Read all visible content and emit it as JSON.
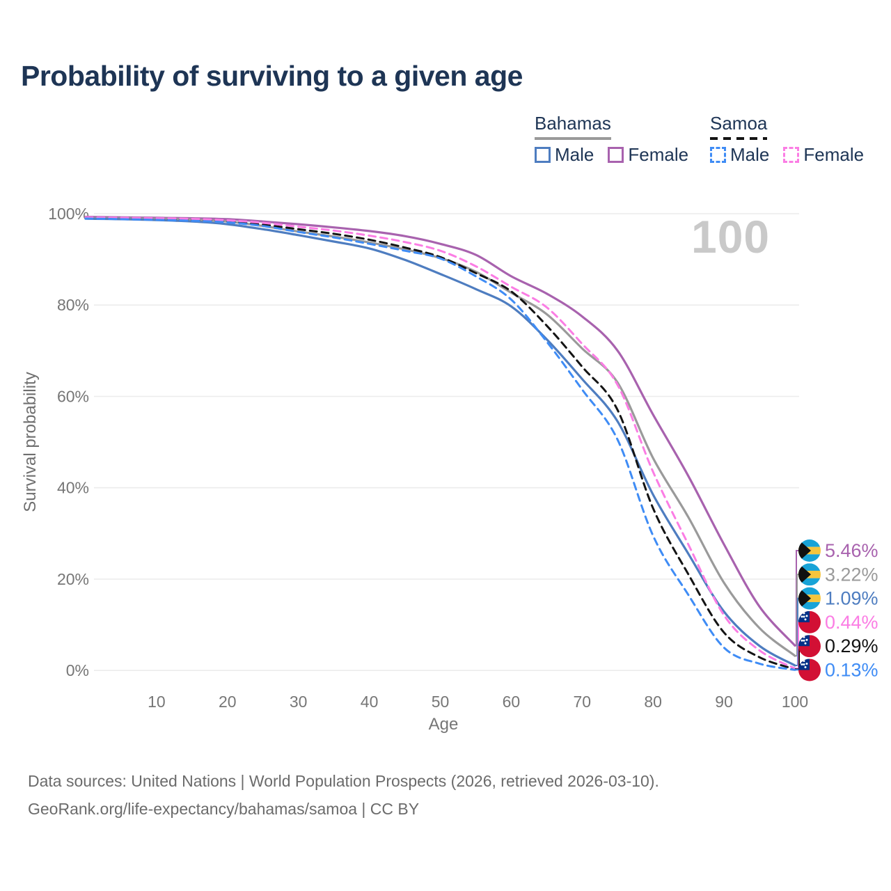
{
  "title": "Probability of surviving to a given age",
  "watermark": "100",
  "legend": {
    "groups": [
      {
        "label": "Bahamas",
        "underline_style": "solid",
        "underline_color": "#9a9a9a",
        "items": [
          {
            "label": "Male",
            "box_color": "#4e7dc0",
            "box_style": "solid"
          },
          {
            "label": "Female",
            "box_color": "#a862ae",
            "box_style": "solid"
          }
        ]
      },
      {
        "label": "Samoa",
        "underline_style": "dashed",
        "underline_color": "#141414",
        "items": [
          {
            "label": "Male",
            "box_color": "#3f8cf5",
            "box_style": "dashed"
          },
          {
            "label": "Female",
            "box_color": "#fb7de4",
            "box_style": "dashed"
          }
        ]
      }
    ]
  },
  "chart_data": {
    "type": "line",
    "title": "Probability of surviving to a given age",
    "xlabel": "Age",
    "ylabel": "Survival probability",
    "xlim": [
      0,
      100
    ],
    "ylim": [
      0,
      100
    ],
    "x_ticks": [
      10,
      20,
      30,
      40,
      50,
      60,
      70,
      80,
      90,
      100
    ],
    "y_ticks": [
      0,
      20,
      40,
      60,
      80,
      100
    ],
    "y_tick_suffix": "%",
    "grid": "horizontal-only",
    "x": [
      0,
      5,
      10,
      15,
      20,
      25,
      30,
      35,
      40,
      45,
      50,
      55,
      60,
      65,
      70,
      75,
      80,
      85,
      90,
      95,
      100
    ],
    "series": [
      {
        "key": "bahamas-female",
        "name": "Bahamas Female",
        "country": "Bahamas",
        "sex": "Female",
        "color": "#a862ae",
        "dash": "solid",
        "values": [
          99.3,
          99.2,
          99.1,
          99.0,
          98.8,
          98.3,
          97.7,
          97.0,
          96.2,
          95.1,
          93.4,
          91.0,
          86.3,
          82.5,
          77.5,
          70.0,
          56.0,
          42.5,
          27.6,
          14.0,
          5.46
        ]
      },
      {
        "key": "bahamas-both",
        "name": "Bahamas Both sexes",
        "country": "Bahamas",
        "sex": "Both sexes",
        "color": "#9a9a9a",
        "dash": "solid",
        "values": [
          99.1,
          99.0,
          98.9,
          98.7,
          98.3,
          97.3,
          96.1,
          95.0,
          93.7,
          92.2,
          90.3,
          87.3,
          82.7,
          78.0,
          70.5,
          63.0,
          46.5,
          33.5,
          19.2,
          9.3,
          3.22
        ]
      },
      {
        "key": "bahamas-male",
        "name": "Bahamas Male",
        "country": "Bahamas",
        "sex": "Male",
        "color": "#4e7dc0",
        "dash": "solid",
        "values": [
          98.9,
          98.8,
          98.6,
          98.3,
          97.7,
          96.6,
          95.3,
          93.9,
          92.4,
          89.9,
          86.8,
          83.5,
          79.7,
          72.5,
          63.8,
          54.5,
          38.5,
          25.5,
          12.9,
          5.4,
          1.09
        ]
      },
      {
        "key": "samoa-both",
        "name": "Samoa Both sexes",
        "country": "Samoa",
        "sex": "Both sexes",
        "color": "#141414",
        "dash": "dashed",
        "values": [
          99.05,
          98.95,
          98.85,
          98.65,
          98.3,
          97.6,
          96.6,
          95.6,
          94.3,
          92.6,
          90.5,
          87.0,
          83.0,
          75.5,
          66.5,
          57.0,
          35.5,
          21.0,
          8.3,
          2.9,
          0.29
        ]
      },
      {
        "key": "samoa-female",
        "name": "Samoa Female",
        "country": "Samoa",
        "sex": "Female",
        "color": "#fb7de4",
        "dash": "dashed",
        "values": [
          99.2,
          99.1,
          99.0,
          98.85,
          98.55,
          98.0,
          97.15,
          96.3,
          95.2,
          93.8,
          91.9,
          88.5,
          84.0,
          79.5,
          71.5,
          62.5,
          43.5,
          27.5,
          12.1,
          4.4,
          0.44
        ]
      },
      {
        "key": "samoa-male",
        "name": "Samoa Male",
        "country": "Samoa",
        "sex": "Male",
        "color": "#3f8cf5",
        "dash": "dashed",
        "values": [
          98.95,
          98.8,
          98.65,
          98.45,
          98.1,
          97.3,
          96.0,
          94.8,
          93.4,
          91.9,
          90.2,
          86.3,
          81.2,
          72.0,
          61.5,
          50.5,
          29.5,
          16.5,
          5.0,
          1.5,
          0.13
        ]
      }
    ],
    "end_labels": [
      {
        "flag": "bahamas",
        "series": "bahamas-female",
        "text": "5.46%",
        "value": 5.46,
        "color": "#a862ae"
      },
      {
        "flag": "bahamas",
        "series": "bahamas-both",
        "text": "3.22%",
        "value": 3.22,
        "color": "#9a9a9a"
      },
      {
        "flag": "bahamas",
        "series": "bahamas-male",
        "text": "1.09%",
        "value": 1.09,
        "color": "#4e7dc0"
      },
      {
        "flag": "samoa",
        "series": "samoa-female",
        "text": "0.44%",
        "value": 0.44,
        "color": "#fb7de4"
      },
      {
        "flag": "samoa",
        "series": "samoa-both",
        "text": "0.29%",
        "value": 0.29,
        "color": "#141414"
      },
      {
        "flag": "samoa",
        "series": "samoa-male",
        "text": "0.13%",
        "value": 0.13,
        "color": "#3f8cf5"
      }
    ],
    "legend_position": "top-right"
  },
  "footer": {
    "line1": "Data sources: United Nations | World Population Prospects (2026, retrieved 2026-03-10).",
    "line2": "GeoRank.org/life-expectancy/bahamas/samoa | CC BY"
  }
}
